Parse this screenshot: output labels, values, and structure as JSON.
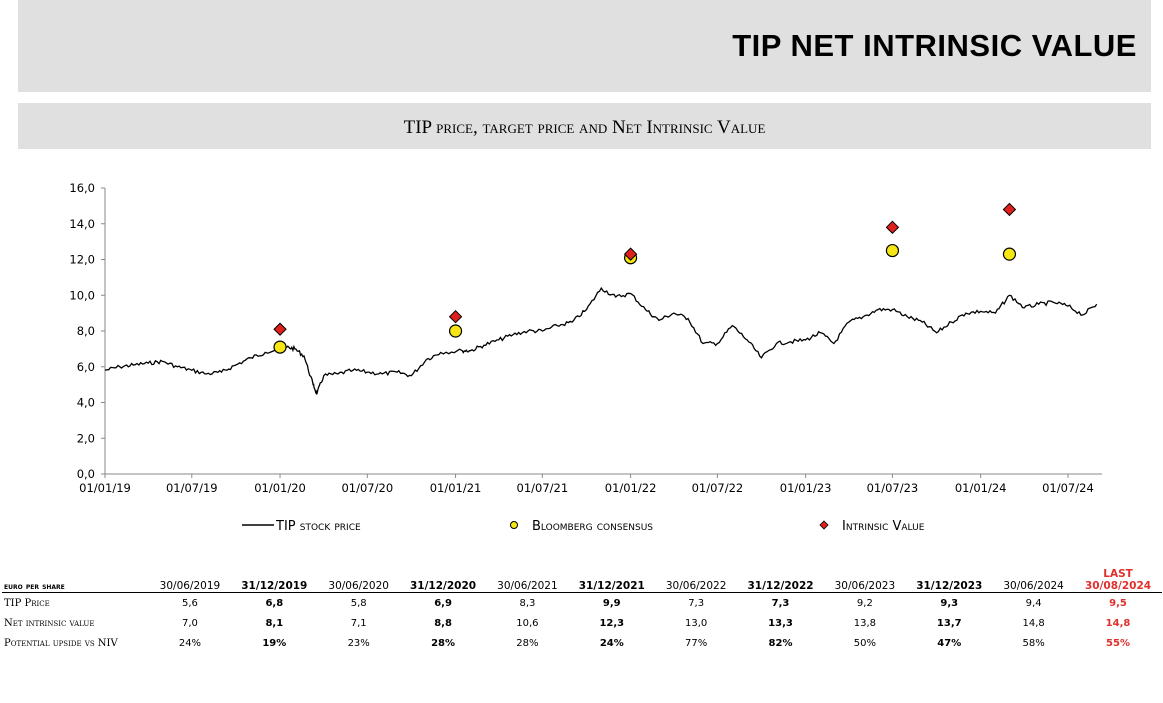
{
  "header": {
    "title": "TIP NET INTRINSIC VALUE"
  },
  "chart_data": {
    "type": "line",
    "title": "TIP price, target price and Net Intrinsic Value",
    "ylim": [
      0,
      16
    ],
    "yticks": [
      "0,0",
      "2,0",
      "4,0",
      "6,0",
      "8,0",
      "10,0",
      "12,0",
      "14,0",
      "16,0"
    ],
    "xlim": [
      "2019-01-01",
      "2024-09-10"
    ],
    "xticks": [
      {
        "date": "2019-01-01",
        "label": "01/01/19"
      },
      {
        "date": "2019-07-01",
        "label": "01/07/19"
      },
      {
        "date": "2020-01-01",
        "label": "01/01/20"
      },
      {
        "date": "2020-07-01",
        "label": "01/07/20"
      },
      {
        "date": "2021-01-01",
        "label": "01/01/21"
      },
      {
        "date": "2021-07-01",
        "label": "01/07/21"
      },
      {
        "date": "2022-01-01",
        "label": "01/01/22"
      },
      {
        "date": "2022-07-01",
        "label": "01/07/22"
      },
      {
        "date": "2023-01-01",
        "label": "01/01/23"
      },
      {
        "date": "2023-07-01",
        "label": "01/07/23"
      },
      {
        "date": "2024-01-01",
        "label": "01/01/24"
      },
      {
        "date": "2024-07-01",
        "label": "01/07/24"
      }
    ],
    "grid": false,
    "legend_position": "bottom",
    "series": [
      {
        "name": "TIP stock price",
        "kind": "line",
        "color": "#000000",
        "points": [
          [
            "2019-01-01",
            5.8
          ],
          [
            "2019-02-01",
            6.0
          ],
          [
            "2019-03-01",
            6.1
          ],
          [
            "2019-04-01",
            6.2
          ],
          [
            "2019-05-01",
            6.3
          ],
          [
            "2019-06-01",
            6.0
          ],
          [
            "2019-07-01",
            5.8
          ],
          [
            "2019-08-01",
            5.6
          ],
          [
            "2019-09-01",
            5.7
          ],
          [
            "2019-10-01",
            6.1
          ],
          [
            "2019-11-01",
            6.5
          ],
          [
            "2019-12-01",
            6.8
          ],
          [
            "2020-01-15",
            7.1
          ],
          [
            "2020-02-01",
            7.0
          ],
          [
            "2020-02-20",
            6.6
          ],
          [
            "2020-03-10",
            5.0
          ],
          [
            "2020-03-18",
            4.5
          ],
          [
            "2020-04-01",
            5.5
          ],
          [
            "2020-05-01",
            5.6
          ],
          [
            "2020-06-01",
            5.8
          ],
          [
            "2020-07-01",
            5.7
          ],
          [
            "2020-08-01",
            5.6
          ],
          [
            "2020-09-01",
            5.7
          ],
          [
            "2020-10-01",
            5.5
          ],
          [
            "2020-11-01",
            6.4
          ],
          [
            "2020-12-01",
            6.8
          ],
          [
            "2021-01-15",
            6.9
          ],
          [
            "2021-02-01",
            6.9
          ],
          [
            "2021-03-01",
            7.2
          ],
          [
            "2021-04-01",
            7.5
          ],
          [
            "2021-05-01",
            7.8
          ],
          [
            "2021-06-01",
            8.0
          ],
          [
            "2021-07-01",
            8.0
          ],
          [
            "2021-08-01",
            8.3
          ],
          [
            "2021-09-01",
            8.5
          ],
          [
            "2021-10-01",
            9.2
          ],
          [
            "2021-11-01",
            10.4
          ],
          [
            "2021-12-01",
            9.9
          ],
          [
            "2022-01-01",
            10.1
          ],
          [
            "2022-02-01",
            9.2
          ],
          [
            "2022-03-01",
            8.6
          ],
          [
            "2022-04-01",
            9.0
          ],
          [
            "2022-05-01",
            8.7
          ],
          [
            "2022-06-01",
            7.3
          ],
          [
            "2022-07-01",
            7.3
          ],
          [
            "2022-08-01",
            8.3
          ],
          [
            "2022-09-01",
            7.5
          ],
          [
            "2022-10-01",
            6.5
          ],
          [
            "2022-11-01",
            7.3
          ],
          [
            "2022-12-01",
            7.4
          ],
          [
            "2023-01-01",
            7.5
          ],
          [
            "2023-02-01",
            7.9
          ],
          [
            "2023-03-01",
            7.3
          ],
          [
            "2023-04-01",
            8.5
          ],
          [
            "2023-05-01",
            8.8
          ],
          [
            "2023-06-01",
            9.2
          ],
          [
            "2023-07-01",
            9.2
          ],
          [
            "2023-08-01",
            8.8
          ],
          [
            "2023-09-01",
            8.5
          ],
          [
            "2023-10-01",
            7.9
          ],
          [
            "2023-11-01",
            8.5
          ],
          [
            "2023-12-01",
            9.0
          ],
          [
            "2024-01-01",
            9.1
          ],
          [
            "2024-02-01",
            9.0
          ],
          [
            "2024-03-01",
            10.0
          ],
          [
            "2024-04-01",
            9.3
          ],
          [
            "2024-05-01",
            9.5
          ],
          [
            "2024-06-01",
            9.6
          ],
          [
            "2024-07-01",
            9.4
          ],
          [
            "2024-08-01",
            8.9
          ],
          [
            "2024-08-30",
            9.5
          ]
        ]
      },
      {
        "name": "Bloomberg consensus",
        "kind": "circle",
        "color": "#f5e614",
        "points": [
          [
            "2020-01-01",
            7.1
          ],
          [
            "2021-01-01",
            8.0
          ],
          [
            "2022-01-01",
            12.1
          ],
          [
            "2023-07-01",
            12.5
          ],
          [
            "2024-03-01",
            12.3
          ]
        ]
      },
      {
        "name": "Intrinsic Value",
        "kind": "diamond",
        "color": "#e0201c",
        "points": [
          [
            "2020-01-01",
            8.1
          ],
          [
            "2021-01-01",
            8.8
          ],
          [
            "2022-01-01",
            12.3
          ],
          [
            "2023-07-01",
            13.8
          ],
          [
            "2024-03-01",
            14.8
          ]
        ]
      }
    ]
  },
  "table": {
    "unit_header": "euro per share",
    "last_label": "LAST",
    "columns": [
      {
        "label": "30/06/2019",
        "bold": false,
        "red": false
      },
      {
        "label": "31/12/2019",
        "bold": true,
        "red": false
      },
      {
        "label": "30/06/2020",
        "bold": false,
        "red": false
      },
      {
        "label": "31/12/2020",
        "bold": true,
        "red": false
      },
      {
        "label": "30/06/2021",
        "bold": false,
        "red": false
      },
      {
        "label": "31/12/2021",
        "bold": true,
        "red": false
      },
      {
        "label": "30/06/2022",
        "bold": false,
        "red": false
      },
      {
        "label": "31/12/2022",
        "bold": true,
        "red": false
      },
      {
        "label": "30/06/2023",
        "bold": false,
        "red": false
      },
      {
        "label": "31/12/2023",
        "bold": true,
        "red": false
      },
      {
        "label": "30/06/2024",
        "bold": false,
        "red": false
      },
      {
        "label": "30/08/2024",
        "bold": true,
        "red": true
      }
    ],
    "rows": [
      {
        "label": "TIP Price",
        "values": [
          "5,6",
          "6,8",
          "5,8",
          "6,9",
          "8,3",
          "9,9",
          "7,3",
          "7,3",
          "9,2",
          "9,3",
          "9,4",
          "9,5"
        ]
      },
      {
        "label": "Net intrinsic value",
        "values": [
          "7,0",
          "8,1",
          "7,1",
          "8,8",
          "10,6",
          "12,3",
          "13,0",
          "13,3",
          "13,8",
          "13,7",
          "14,8",
          "14,8"
        ]
      },
      {
        "label": "Potential upside vs NIV",
        "values": [
          "24%",
          "19%",
          "23%",
          "28%",
          "28%",
          "24%",
          "77%",
          "82%",
          "50%",
          "47%",
          "58%",
          "55%"
        ]
      }
    ]
  }
}
